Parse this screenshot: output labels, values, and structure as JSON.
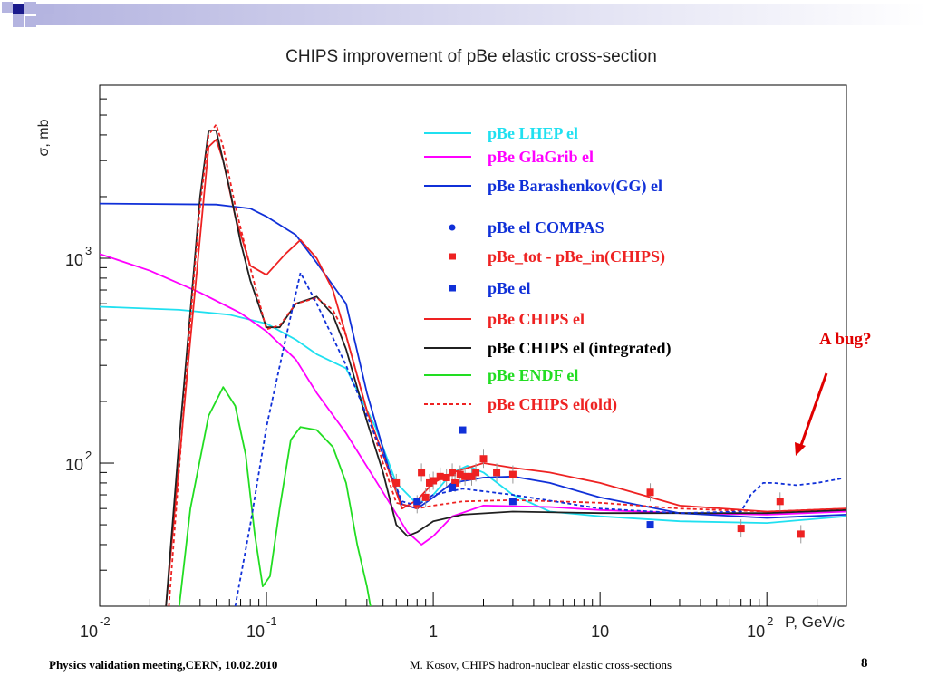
{
  "slide": {
    "title": "CHIPS improvement of pBe elastic cross-section",
    "annotation": "A bug?",
    "footer_left": "Physics validation meeting,CERN, 10.02.2010",
    "footer_center": "M. Kosov,  CHIPS hadron-nuclear elastic cross-sections",
    "page_number": "8",
    "colors": {
      "deco_dark": "#1a1a8c",
      "deco_light": "#b4b4e0",
      "annotation": "#e00000"
    }
  },
  "chart_data": {
    "type": "line",
    "title": "",
    "xlabel": "P, GeV/c",
    "ylabel": "σ, mb",
    "xscale": "log",
    "yscale": "log",
    "xlim": [
      0.01,
      300
    ],
    "ylim": [
      20,
      7000
    ],
    "x_tick_labels": [
      {
        "value": 0.01,
        "base": "10",
        "exp": "-2"
      },
      {
        "value": 0.1,
        "base": "10",
        "exp": "-1"
      },
      {
        "value": 1,
        "base": "1",
        "exp": ""
      },
      {
        "value": 10,
        "base": "10",
        "exp": ""
      },
      {
        "value": 100,
        "base": "10",
        "exp": "2"
      }
    ],
    "y_tick_labels": [
      {
        "value": 100,
        "base": "10",
        "exp": "2"
      },
      {
        "value": 1000,
        "base": "10",
        "exp": "3"
      }
    ],
    "legend_position": "top-right",
    "series": [
      {
        "name": "pBe LHEP el",
        "kind": "line",
        "color": "#20e0f0",
        "dash": "solid",
        "points": [
          [
            0.01,
            580
          ],
          [
            0.03,
            560
          ],
          [
            0.06,
            530
          ],
          [
            0.1,
            480
          ],
          [
            0.15,
            400
          ],
          [
            0.2,
            340
          ],
          [
            0.3,
            290
          ],
          [
            0.45,
            150
          ],
          [
            0.6,
            80
          ],
          [
            0.8,
            63
          ],
          [
            1.0,
            70
          ],
          [
            1.3,
            90
          ],
          [
            1.6,
            97
          ],
          [
            2.0,
            90
          ],
          [
            3,
            70
          ],
          [
            5,
            58
          ],
          [
            10,
            55
          ],
          [
            30,
            52
          ],
          [
            100,
            51
          ],
          [
            300,
            55
          ]
        ]
      },
      {
        "name": "pBe GlaGrib el",
        "kind": "line",
        "color": "#ff00ff",
        "dash": "solid",
        "points": [
          [
            0.01,
            1050
          ],
          [
            0.02,
            870
          ],
          [
            0.04,
            680
          ],
          [
            0.07,
            540
          ],
          [
            0.1,
            440
          ],
          [
            0.15,
            320
          ],
          [
            0.2,
            220
          ],
          [
            0.3,
            140
          ],
          [
            0.5,
            72
          ],
          [
            0.7,
            46
          ],
          [
            0.85,
            40
          ],
          [
            1.0,
            44
          ],
          [
            1.3,
            55
          ],
          [
            2,
            62
          ],
          [
            5,
            61
          ],
          [
            10,
            59
          ],
          [
            30,
            57
          ],
          [
            100,
            56
          ],
          [
            300,
            58
          ]
        ]
      },
      {
        "name": "pBe Barashenkov(GG) el",
        "kind": "line",
        "color": "#1030d8",
        "dash": "solid",
        "points": [
          [
            0.01,
            1850
          ],
          [
            0.05,
            1830
          ],
          [
            0.08,
            1750
          ],
          [
            0.1,
            1600
          ],
          [
            0.15,
            1300
          ],
          [
            0.2,
            950
          ],
          [
            0.3,
            600
          ],
          [
            0.4,
            220
          ],
          [
            0.55,
            90
          ],
          [
            0.65,
            63
          ],
          [
            0.8,
            60
          ],
          [
            1.0,
            68
          ],
          [
            1.3,
            80
          ],
          [
            2,
            85
          ],
          [
            3,
            86
          ],
          [
            5,
            80
          ],
          [
            10,
            68
          ],
          [
            30,
            57
          ],
          [
            100,
            54
          ],
          [
            300,
            56
          ]
        ]
      },
      {
        "name": "pBe CHIPS el",
        "kind": "line",
        "color": "#ee2222",
        "dash": "solid",
        "points": [
          [
            0.025,
            20
          ],
          [
            0.035,
            400
          ],
          [
            0.045,
            3500
          ],
          [
            0.05,
            3800
          ],
          [
            0.055,
            3000
          ],
          [
            0.065,
            1600
          ],
          [
            0.08,
            920
          ],
          [
            0.1,
            830
          ],
          [
            0.13,
            1050
          ],
          [
            0.16,
            1230
          ],
          [
            0.2,
            1000
          ],
          [
            0.25,
            700
          ],
          [
            0.3,
            420
          ],
          [
            0.4,
            180
          ],
          [
            0.5,
            110
          ],
          [
            0.65,
            60
          ],
          [
            0.8,
            66
          ],
          [
            1.0,
            80
          ],
          [
            1.3,
            90
          ],
          [
            2,
            100
          ],
          [
            3,
            95
          ],
          [
            5,
            90
          ],
          [
            10,
            80
          ],
          [
            30,
            62
          ],
          [
            100,
            58
          ],
          [
            300,
            60
          ]
        ]
      },
      {
        "name": "pBe CHIPS el (integrated)",
        "kind": "line",
        "color": "#202020",
        "dash": "solid",
        "points": [
          [
            0.025,
            20
          ],
          [
            0.03,
            130
          ],
          [
            0.035,
            550
          ],
          [
            0.04,
            2000
          ],
          [
            0.045,
            4200
          ],
          [
            0.05,
            4200
          ],
          [
            0.06,
            2200
          ],
          [
            0.07,
            1200
          ],
          [
            0.08,
            780
          ],
          [
            0.1,
            460
          ],
          [
            0.12,
            460
          ],
          [
            0.15,
            600
          ],
          [
            0.2,
            650
          ],
          [
            0.25,
            530
          ],
          [
            0.3,
            360
          ],
          [
            0.4,
            160
          ],
          [
            0.5,
            90
          ],
          [
            0.6,
            50
          ],
          [
            0.7,
            44
          ],
          [
            0.8,
            46
          ],
          [
            1.0,
            52
          ],
          [
            1.5,
            56
          ],
          [
            3,
            58
          ],
          [
            10,
            57
          ],
          [
            100,
            57
          ],
          [
            300,
            59
          ]
        ]
      },
      {
        "name": "pBe ENDF el",
        "kind": "line",
        "color": "#22dd22",
        "dash": "solid",
        "points": [
          [
            0.03,
            20
          ],
          [
            0.035,
            60
          ],
          [
            0.045,
            170
          ],
          [
            0.055,
            235
          ],
          [
            0.065,
            190
          ],
          [
            0.075,
            110
          ],
          [
            0.085,
            45
          ],
          [
            0.095,
            25
          ],
          [
            0.105,
            28
          ],
          [
            0.12,
            60
          ],
          [
            0.14,
            130
          ],
          [
            0.16,
            150
          ],
          [
            0.2,
            145
          ],
          [
            0.25,
            120
          ],
          [
            0.3,
            80
          ],
          [
            0.35,
            40
          ],
          [
            0.4,
            25
          ],
          [
            0.42,
            20
          ]
        ]
      },
      {
        "name": "pBe CHIPS el(old)",
        "kind": "line",
        "color": "#ee2222",
        "dash": "dashed",
        "points": [
          [
            0.026,
            20
          ],
          [
            0.035,
            500
          ],
          [
            0.04,
            1800
          ],
          [
            0.045,
            4000
          ],
          [
            0.05,
            4500
          ],
          [
            0.055,
            3500
          ],
          [
            0.065,
            1800
          ],
          [
            0.08,
            900
          ],
          [
            0.1,
            450
          ],
          [
            0.12,
            470
          ],
          [
            0.15,
            600
          ],
          [
            0.2,
            640
          ],
          [
            0.25,
            560
          ],
          [
            0.3,
            420
          ],
          [
            0.4,
            180
          ],
          [
            0.5,
            100
          ],
          [
            0.6,
            64
          ],
          [
            0.8,
            60
          ],
          [
            1.0,
            62
          ],
          [
            1.5,
            65
          ],
          [
            3,
            66
          ],
          [
            10,
            64
          ],
          [
            30,
            60
          ],
          [
            100,
            58
          ],
          [
            300,
            60
          ]
        ]
      },
      {
        "name": "",
        "kind": "line",
        "color": "#1030d8",
        "dash": "dashed",
        "points": [
          [
            0.065,
            20
          ],
          [
            0.08,
            50
          ],
          [
            0.1,
            150
          ],
          [
            0.13,
            400
          ],
          [
            0.16,
            850
          ],
          [
            0.2,
            600
          ],
          [
            0.3,
            300
          ],
          [
            0.4,
            170
          ],
          [
            0.5,
            110
          ],
          [
            0.65,
            65
          ],
          [
            0.8,
            62
          ],
          [
            1.0,
            70
          ],
          [
            1.5,
            75
          ],
          [
            3,
            70
          ],
          [
            10,
            60
          ],
          [
            30,
            57
          ],
          [
            70,
            58
          ],
          [
            80,
            70
          ],
          [
            95,
            80
          ],
          [
            110,
            80
          ],
          [
            150,
            78
          ],
          [
            200,
            80
          ],
          [
            280,
            84
          ]
        ]
      },
      {
        "name": "pBe el COMPAS",
        "kind": "markers",
        "marker": "circle",
        "color": "#1030d8",
        "points": [
          [
            3.0,
            65
          ],
          [
            20,
            50
          ]
        ]
      },
      {
        "name": "pBe_tot - pBe_in(CHIPS)",
        "kind": "markers",
        "marker": "square",
        "color": "#ee2222",
        "points": [
          [
            0.6,
            80
          ],
          [
            0.8,
            63
          ],
          [
            0.85,
            90
          ],
          [
            0.9,
            68
          ],
          [
            0.95,
            80
          ],
          [
            1.0,
            82
          ],
          [
            1.1,
            86
          ],
          [
            1.2,
            85
          ],
          [
            1.3,
            90
          ],
          [
            1.35,
            80
          ],
          [
            1.45,
            88
          ],
          [
            1.55,
            86
          ],
          [
            1.7,
            86
          ],
          [
            1.8,
            90
          ],
          [
            2.0,
            105
          ],
          [
            2.4,
            90
          ],
          [
            3.0,
            88
          ],
          [
            20,
            72
          ],
          [
            70,
            48
          ],
          [
            120,
            65
          ],
          [
            160,
            45
          ]
        ]
      },
      {
        "name": "pBe el",
        "kind": "markers",
        "marker": "square",
        "color": "#1030d8",
        "points": [
          [
            1.3,
            76
          ],
          [
            1.5,
            145
          ],
          [
            0.8,
            65
          ]
        ]
      }
    ]
  }
}
